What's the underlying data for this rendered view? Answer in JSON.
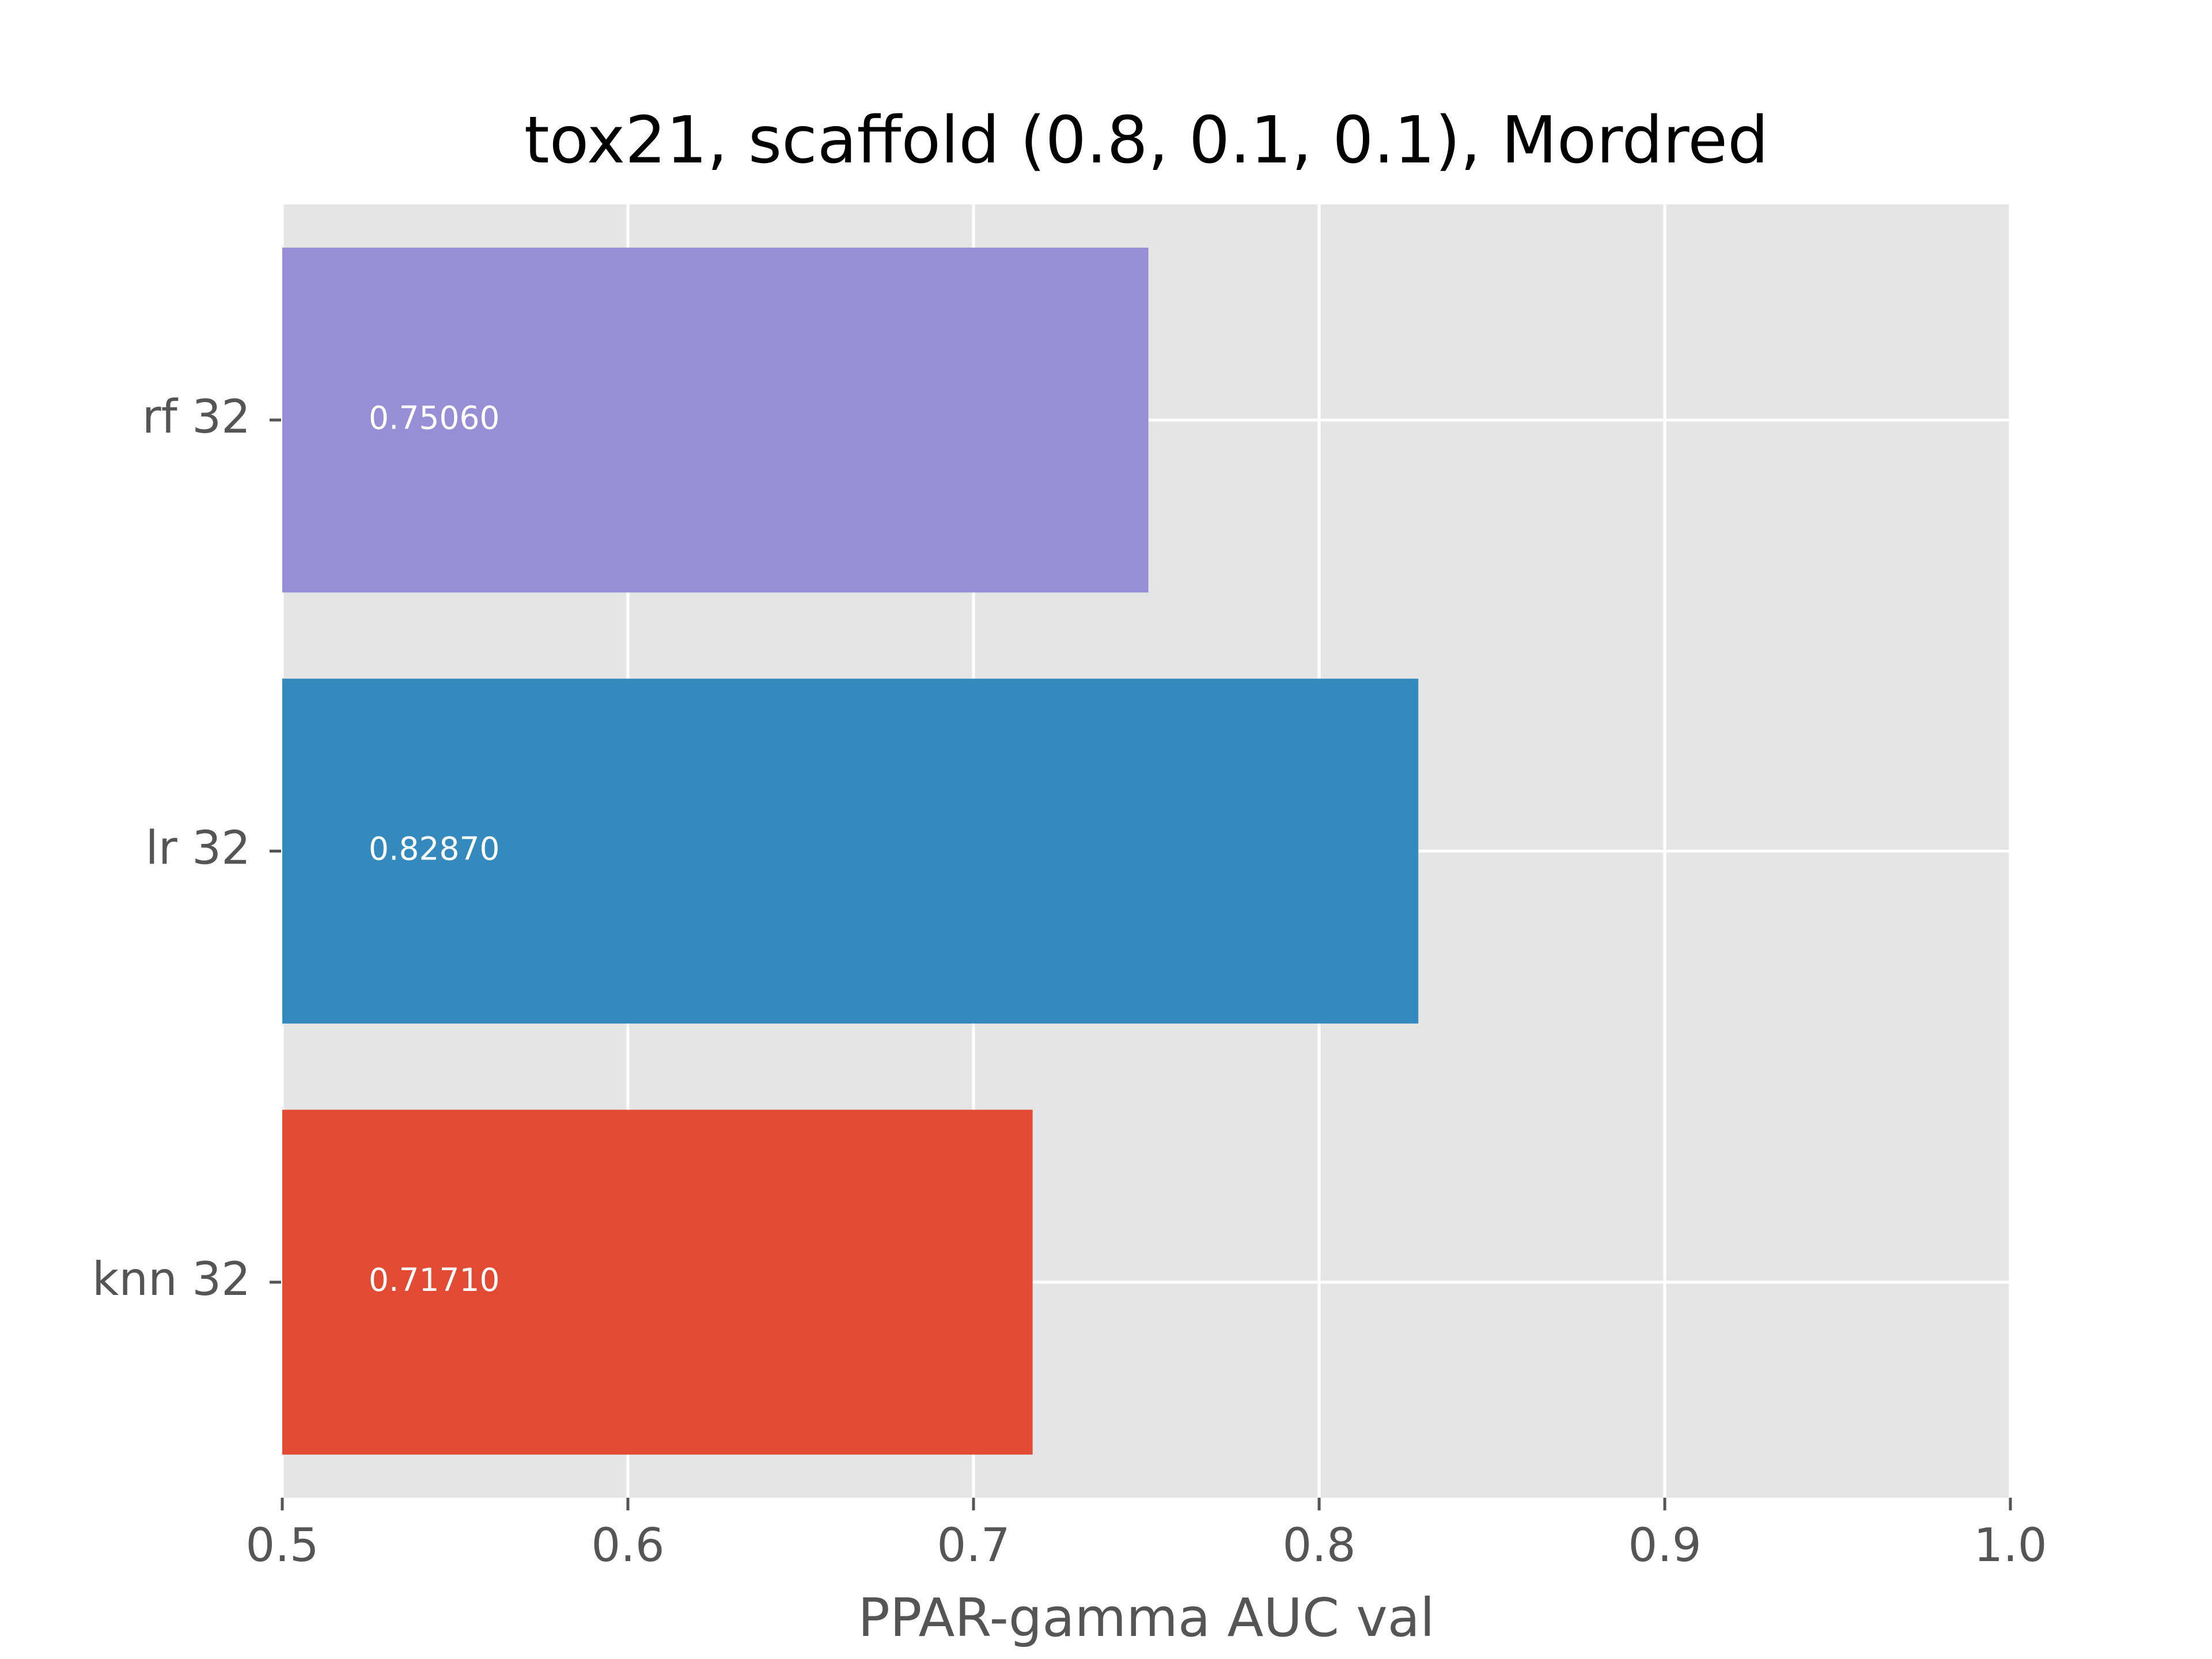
{
  "chart_data": {
    "type": "bar",
    "orientation": "horizontal",
    "title": "tox21, scaffold (0.8, 0.1, 0.1), Mordred",
    "xlabel": "PPAR-gamma AUC val",
    "ylabel": "",
    "xlim": [
      0.5,
      1.0
    ],
    "x_ticks": [
      {
        "value": 0.5,
        "label": "0.5"
      },
      {
        "value": 0.6,
        "label": "0.6"
      },
      {
        "value": 0.7,
        "label": "0.7"
      },
      {
        "value": 0.8,
        "label": "0.8"
      },
      {
        "value": 0.9,
        "label": "0.9"
      },
      {
        "value": 1.0,
        "label": "1.0"
      }
    ],
    "categories": [
      "knn 32",
      "lr 32",
      "rf 32"
    ],
    "values": [
      0.7171,
      0.8287,
      0.7506
    ],
    "data_labels": [
      "0.71710",
      "0.82870",
      "0.75060"
    ],
    "colors": [
      "#E24A33",
      "#348ABD",
      "#988ED5"
    ],
    "background": "#E5E5E5",
    "grid": true,
    "grid_color": "#FFFFFF"
  }
}
